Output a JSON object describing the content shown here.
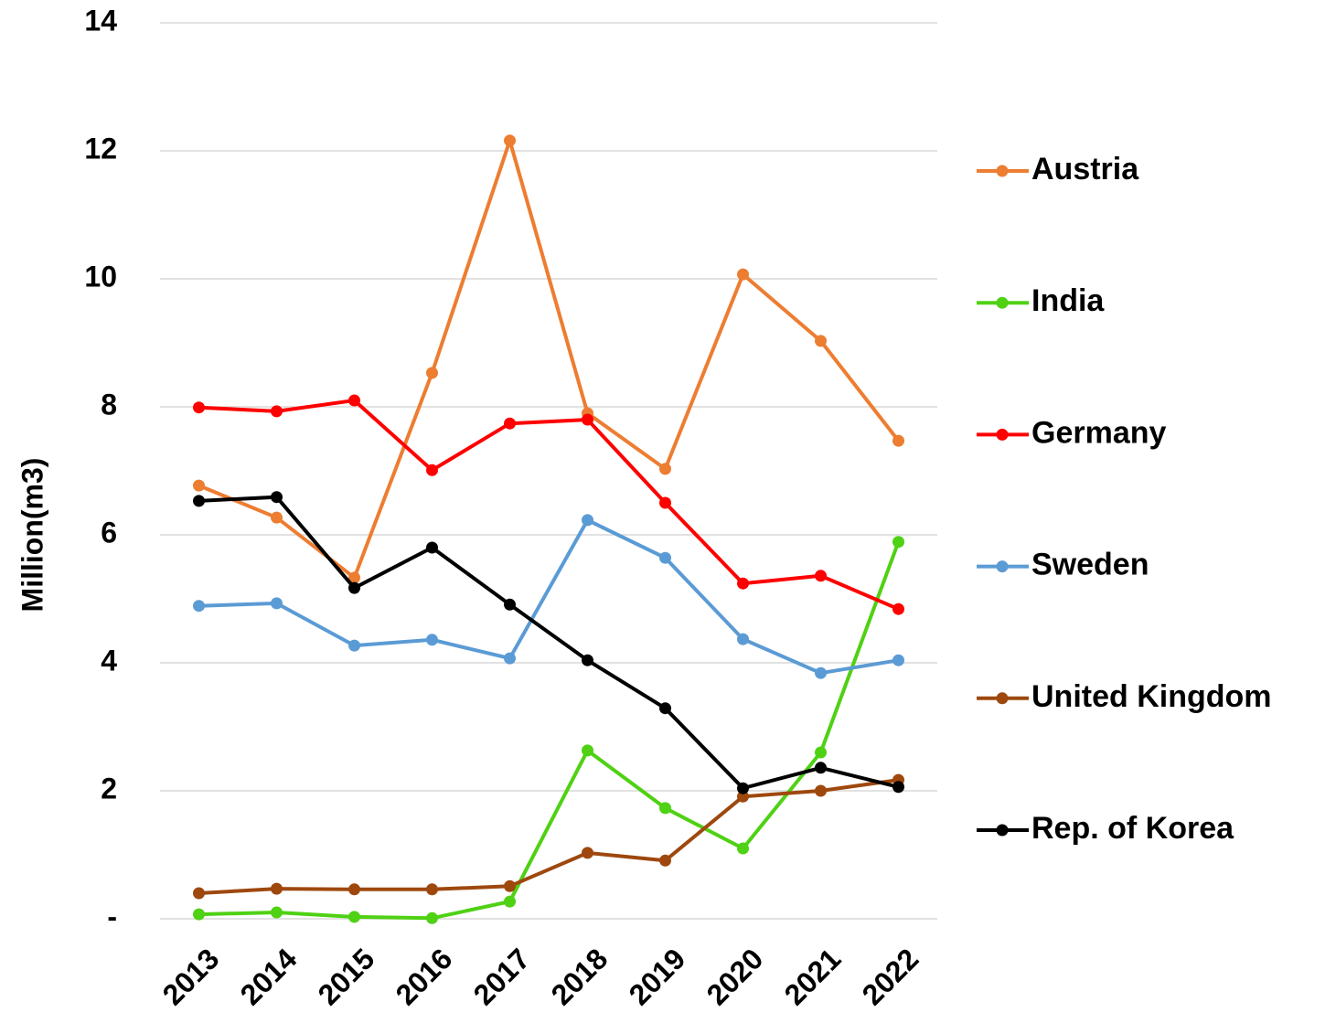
{
  "chart_data": {
    "type": "line",
    "y_label": "Million(m3)",
    "categories": [
      "2013",
      "2014",
      "2015",
      "2016",
      "2017",
      "2018",
      "2019",
      "2020",
      "2021",
      "2022"
    ],
    "ylim": [
      0,
      14
    ],
    "yticks": [
      {
        "value": 0,
        "label": "-"
      },
      2,
      4,
      6,
      8,
      10,
      12,
      14
    ],
    "grid": true,
    "legend": "right",
    "series": [
      {
        "name": "Austria",
        "color": "#ed7d31",
        "values": [
          6.77,
          6.27,
          5.33,
          8.53,
          12.16,
          7.9,
          7.03,
          10.07,
          9.03,
          7.47
        ]
      },
      {
        "name": "India",
        "color": "#4fd114",
        "values": [
          0.07,
          0.1,
          0.03,
          0.01,
          0.27,
          2.63,
          1.73,
          1.1,
          2.6,
          5.89
        ]
      },
      {
        "name": "Germany",
        "color": "#ff0000",
        "values": [
          7.99,
          7.93,
          8.1,
          7.01,
          7.74,
          7.8,
          6.5,
          5.24,
          5.36,
          4.84
        ]
      },
      {
        "name": "Sweden",
        "color": "#5b9bd5",
        "values": [
          4.89,
          4.93,
          4.27,
          4.36,
          4.07,
          6.23,
          5.64,
          4.37,
          3.84,
          4.04
        ]
      },
      {
        "name": "United Kingdom",
        "color": "#9e480e",
        "values": [
          0.4,
          0.47,
          0.46,
          0.46,
          0.51,
          1.03,
          0.91,
          1.91,
          2.0,
          2.17
        ]
      },
      {
        "name": "Rep. of Korea",
        "color": "#000000",
        "values": [
          6.53,
          6.59,
          5.17,
          5.8,
          4.91,
          4.04,
          3.29,
          2.04,
          2.36,
          2.06
        ]
      }
    ]
  }
}
